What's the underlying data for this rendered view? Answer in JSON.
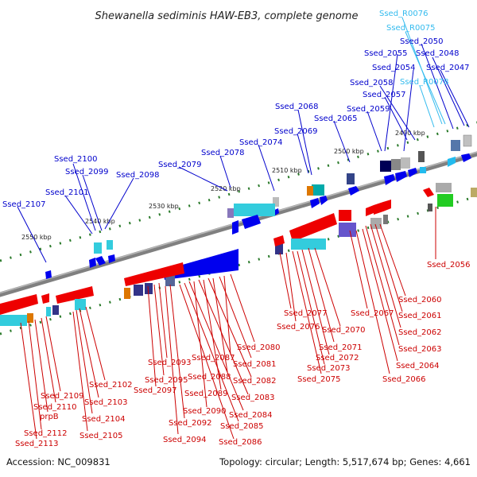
{
  "title": "Shewanella sediminis HAW-EB3, complete genome",
  "footer": {
    "accession": "Accession: NC_009831",
    "topology": "Topology: circular; Length: 5,517,674 bp; Genes: 4,661"
  },
  "colors": {
    "forward_label": "#0000cc",
    "reverse_label": "#cc0000",
    "rna_label": "#33bbee",
    "backbone": "#808080",
    "tick_dots": "#2a7a2a"
  },
  "ticks": [
    "2490 kbp",
    "2500 kbp",
    "2510 kbp",
    "2520 kbp",
    "2530 kbp",
    "2540 kbp",
    "2550 kbp"
  ],
  "labels_forward": [
    "Ssed_R0076",
    "Ssed_R0075",
    "Ssed_2050",
    "Ssed_2055",
    "Ssed_2048",
    "Ssed_2054",
    "Ssed_2047",
    "Ssed_2058",
    "Ssed_R0078",
    "Ssed_2057",
    "Ssed_2068",
    "Ssed_2059",
    "Ssed_2065",
    "Ssed_2069",
    "Ssed_2074",
    "Ssed_2078",
    "Ssed_2100",
    "Ssed_2079",
    "Ssed_2099",
    "Ssed_2098",
    "Ssed_2101",
    "Ssed_2107"
  ],
  "labels_reverse": [
    "Ssed_2056",
    "Ssed_2060",
    "Ssed_2061",
    "Ssed_2062",
    "Ssed_2063",
    "Ssed_2064",
    "Ssed_2066",
    "Ssed_2067",
    "Ssed_2077",
    "Ssed_2076",
    "Ssed_2070",
    "Ssed_2071",
    "Ssed_2072",
    "Ssed_2073",
    "Ssed_2075",
    "Ssed_2080",
    "Ssed_2087",
    "Ssed_2081",
    "Ssed_2088",
    "Ssed_2082",
    "Ssed_2093",
    "Ssed_2095",
    "Ssed_2089",
    "Ssed_2083",
    "Ssed_2097",
    "Ssed_2090",
    "Ssed_2084",
    "Ssed_2085",
    "Ssed_2092",
    "Ssed_2094",
    "Ssed_2086",
    "Ssed_2102",
    "Ssed_2103",
    "Ssed_2104",
    "Ssed_2105",
    "Ssed_2109",
    "Ssed_2110",
    "prpB",
    "Ssed_2112",
    "Ssed_2113"
  ]
}
